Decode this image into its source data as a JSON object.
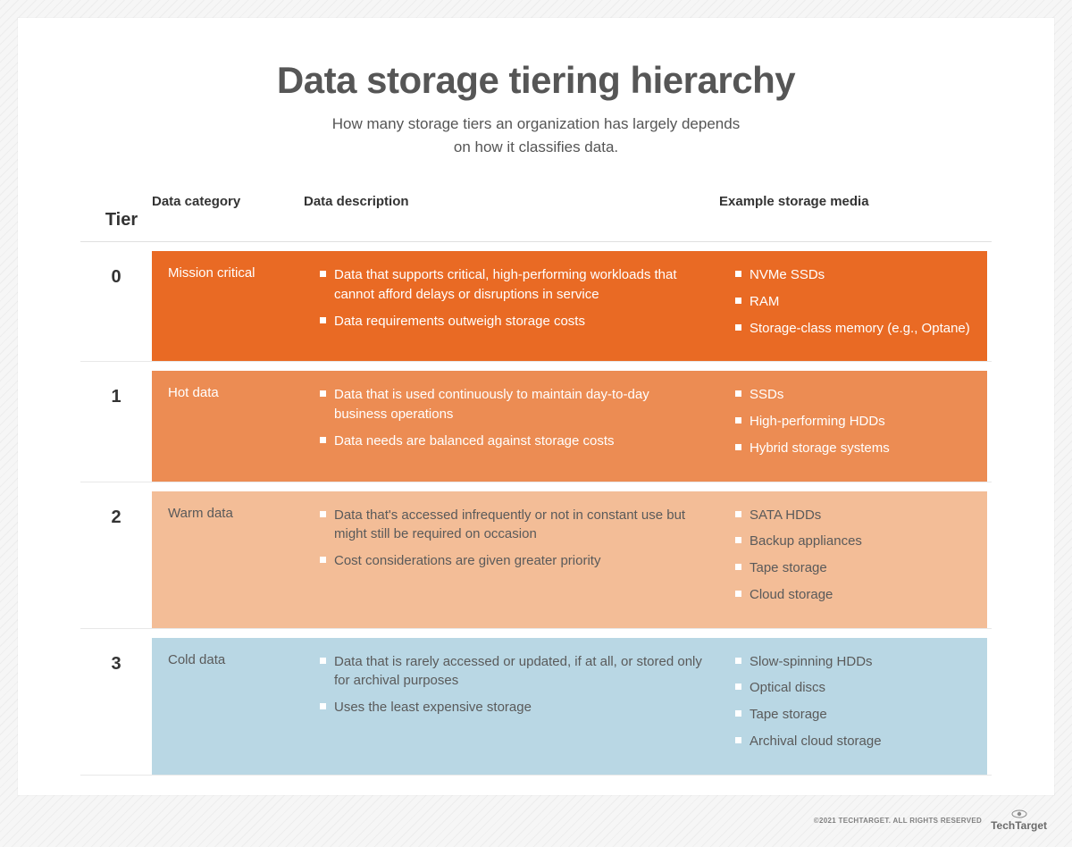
{
  "title": "Data storage tiering hierarchy",
  "subtitle_line1": "How many storage tiers an organization has largely depends",
  "subtitle_line2": "on how it classifies data.",
  "columns": {
    "c0": "Tier",
    "c1": "Data category",
    "c2": "Data description",
    "c3": "Example storage media"
  },
  "colors": {
    "page_bg": "#f2f2f2",
    "panel_bg": "#ffffff",
    "title_color": "#565656",
    "text_color": "#555555"
  },
  "rows": [
    {
      "tier": "0",
      "category": "Mission critical",
      "row_color": "#e96a24",
      "text_color": "#ffffff",
      "bullet_color": "#ffffff",
      "descriptions": [
        "Data that supports critical, high-performing workloads that cannot afford delays or disruptions in service",
        "Data requirements outweigh storage costs"
      ],
      "media": [
        "NVMe SSDs",
        "RAM",
        "Storage-class memory (e.g., Optane)"
      ]
    },
    {
      "tier": "1",
      "category": "Hot data",
      "row_color": "#ec8c53",
      "text_color": "#ffffff",
      "bullet_color": "#ffffff",
      "descriptions": [
        "Data that is used continuously to maintain day-to-day business operations",
        "Data needs are balanced against storage costs"
      ],
      "media": [
        "SSDs",
        "High-performing HDDs",
        "Hybrid storage systems"
      ]
    },
    {
      "tier": "2",
      "category": "Warm data",
      "row_color": "#f3bd97",
      "text_color": "#5a5a5a",
      "bullet_color": "#ffffff",
      "descriptions": [
        "Data that's accessed infrequently or not in constant use but might still be required on occasion",
        "Cost considerations are given greater priority"
      ],
      "media": [
        "SATA HDDs",
        "Backup appliances",
        "Tape storage",
        "Cloud storage"
      ]
    },
    {
      "tier": "3",
      "category": "Cold data",
      "row_color": "#b9d7e4",
      "text_color": "#5a5a5a",
      "bullet_color": "#ffffff",
      "descriptions": [
        "Data that is rarely accessed or updated, if at all, or stored only for archival purposes",
        "Uses the least expensive storage"
      ],
      "media": [
        "Slow-spinning HDDs",
        "Optical discs",
        "Tape storage",
        "Archival cloud storage"
      ]
    }
  ],
  "footer": {
    "copyright": "©2021 TECHTARGET. ALL RIGHTS RESERVED",
    "brand": "TechTarget"
  }
}
